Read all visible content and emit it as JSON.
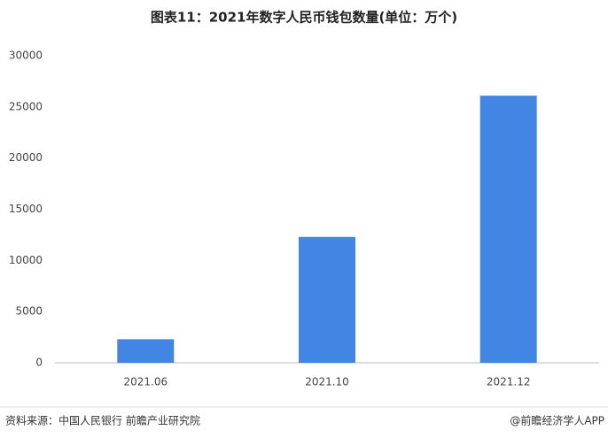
{
  "chart_data": {
    "type": "bar",
    "title": "图表11：2021年数字人民币钱包数量(单位：万个)",
    "categories": [
      "2021.06",
      "2021.10",
      "2021.12"
    ],
    "values": [
      2300,
      12300,
      26100
    ],
    "color": "#4285e3",
    "ylim": [
      0,
      30000
    ],
    "yticks": [
      0,
      5000,
      10000,
      15000,
      20000,
      25000,
      30000
    ],
    "grid": false,
    "source": "资料来源：中国人民银行 前瞻产业研究院",
    "credit": "@前瞻经济学人APP"
  }
}
